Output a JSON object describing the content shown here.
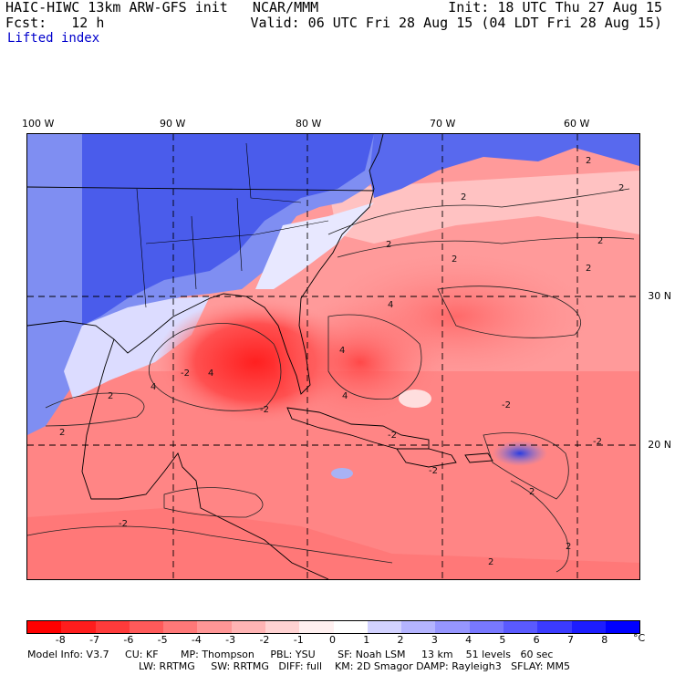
{
  "header": {
    "title_left": "HAIC-HIWC 13km ARW-GFS init   NCAR/MMM",
    "title_right": "Init: 18 UTC Thu 27 Aug 15",
    "fcst_left": "Fcst:   12 h",
    "fcst_right": "Valid: 06 UTC Fri 28 Aug 15 (04 LDT Fri 28 Aug 15)",
    "field": "Lifted index"
  },
  "axes": {
    "lon_labels": [
      "100 W",
      "90 W",
      "80 W",
      "70 W",
      "60 W"
    ],
    "lat_labels": [
      "30 N",
      "20 N"
    ]
  },
  "colorbar": {
    "labels": [
      "-8",
      "-7",
      "-6",
      "-5",
      "-4",
      "-3",
      "-2",
      "-1",
      "0",
      "1",
      "2",
      "3",
      "4",
      "5",
      "6",
      "7",
      "8"
    ],
    "unit": "°C",
    "colors": [
      "#ff0000",
      "#ff1d1d",
      "#ff3b3b",
      "#ff5a5a",
      "#ff7878",
      "#ff9696",
      "#ffb4b4",
      "#ffd2d2",
      "#fff0f0",
      "#ffffff",
      "#d2d2ff",
      "#b4b4ff",
      "#9696ff",
      "#7878ff",
      "#5a5aff",
      "#3b3bff",
      "#1d1dff",
      "#0000ff"
    ]
  },
  "contour_labels": [
    "2",
    "2",
    "2",
    "2",
    "2",
    "2",
    "2",
    "4",
    "4",
    "4",
    "4",
    "4",
    "2",
    "2",
    "2",
    "2",
    "2",
    "-2",
    "-2",
    "-2",
    "-2",
    "-2",
    "-2",
    "-2"
  ],
  "model_info": {
    "line1": "Model Info: V3.7     CU: KF       MP: Thompson     PBL: YSU       SF: Noah LSM     13 km    51 levels   60 sec",
    "line2": "LW: RRTMG     SW: RRTMG   DIFF: full    KM: 2D Smagor DAMP: Rayleigh3   SFLAY: MM5"
  },
  "palette": {
    "blue_deep": "#3b4be8",
    "blue_mid": "#6f7ff0",
    "blue_light": "#b8c0f6",
    "pink_light": "#ffd0d0",
    "red_mid": "#ff8080",
    "red_deep": "#ff3030"
  }
}
